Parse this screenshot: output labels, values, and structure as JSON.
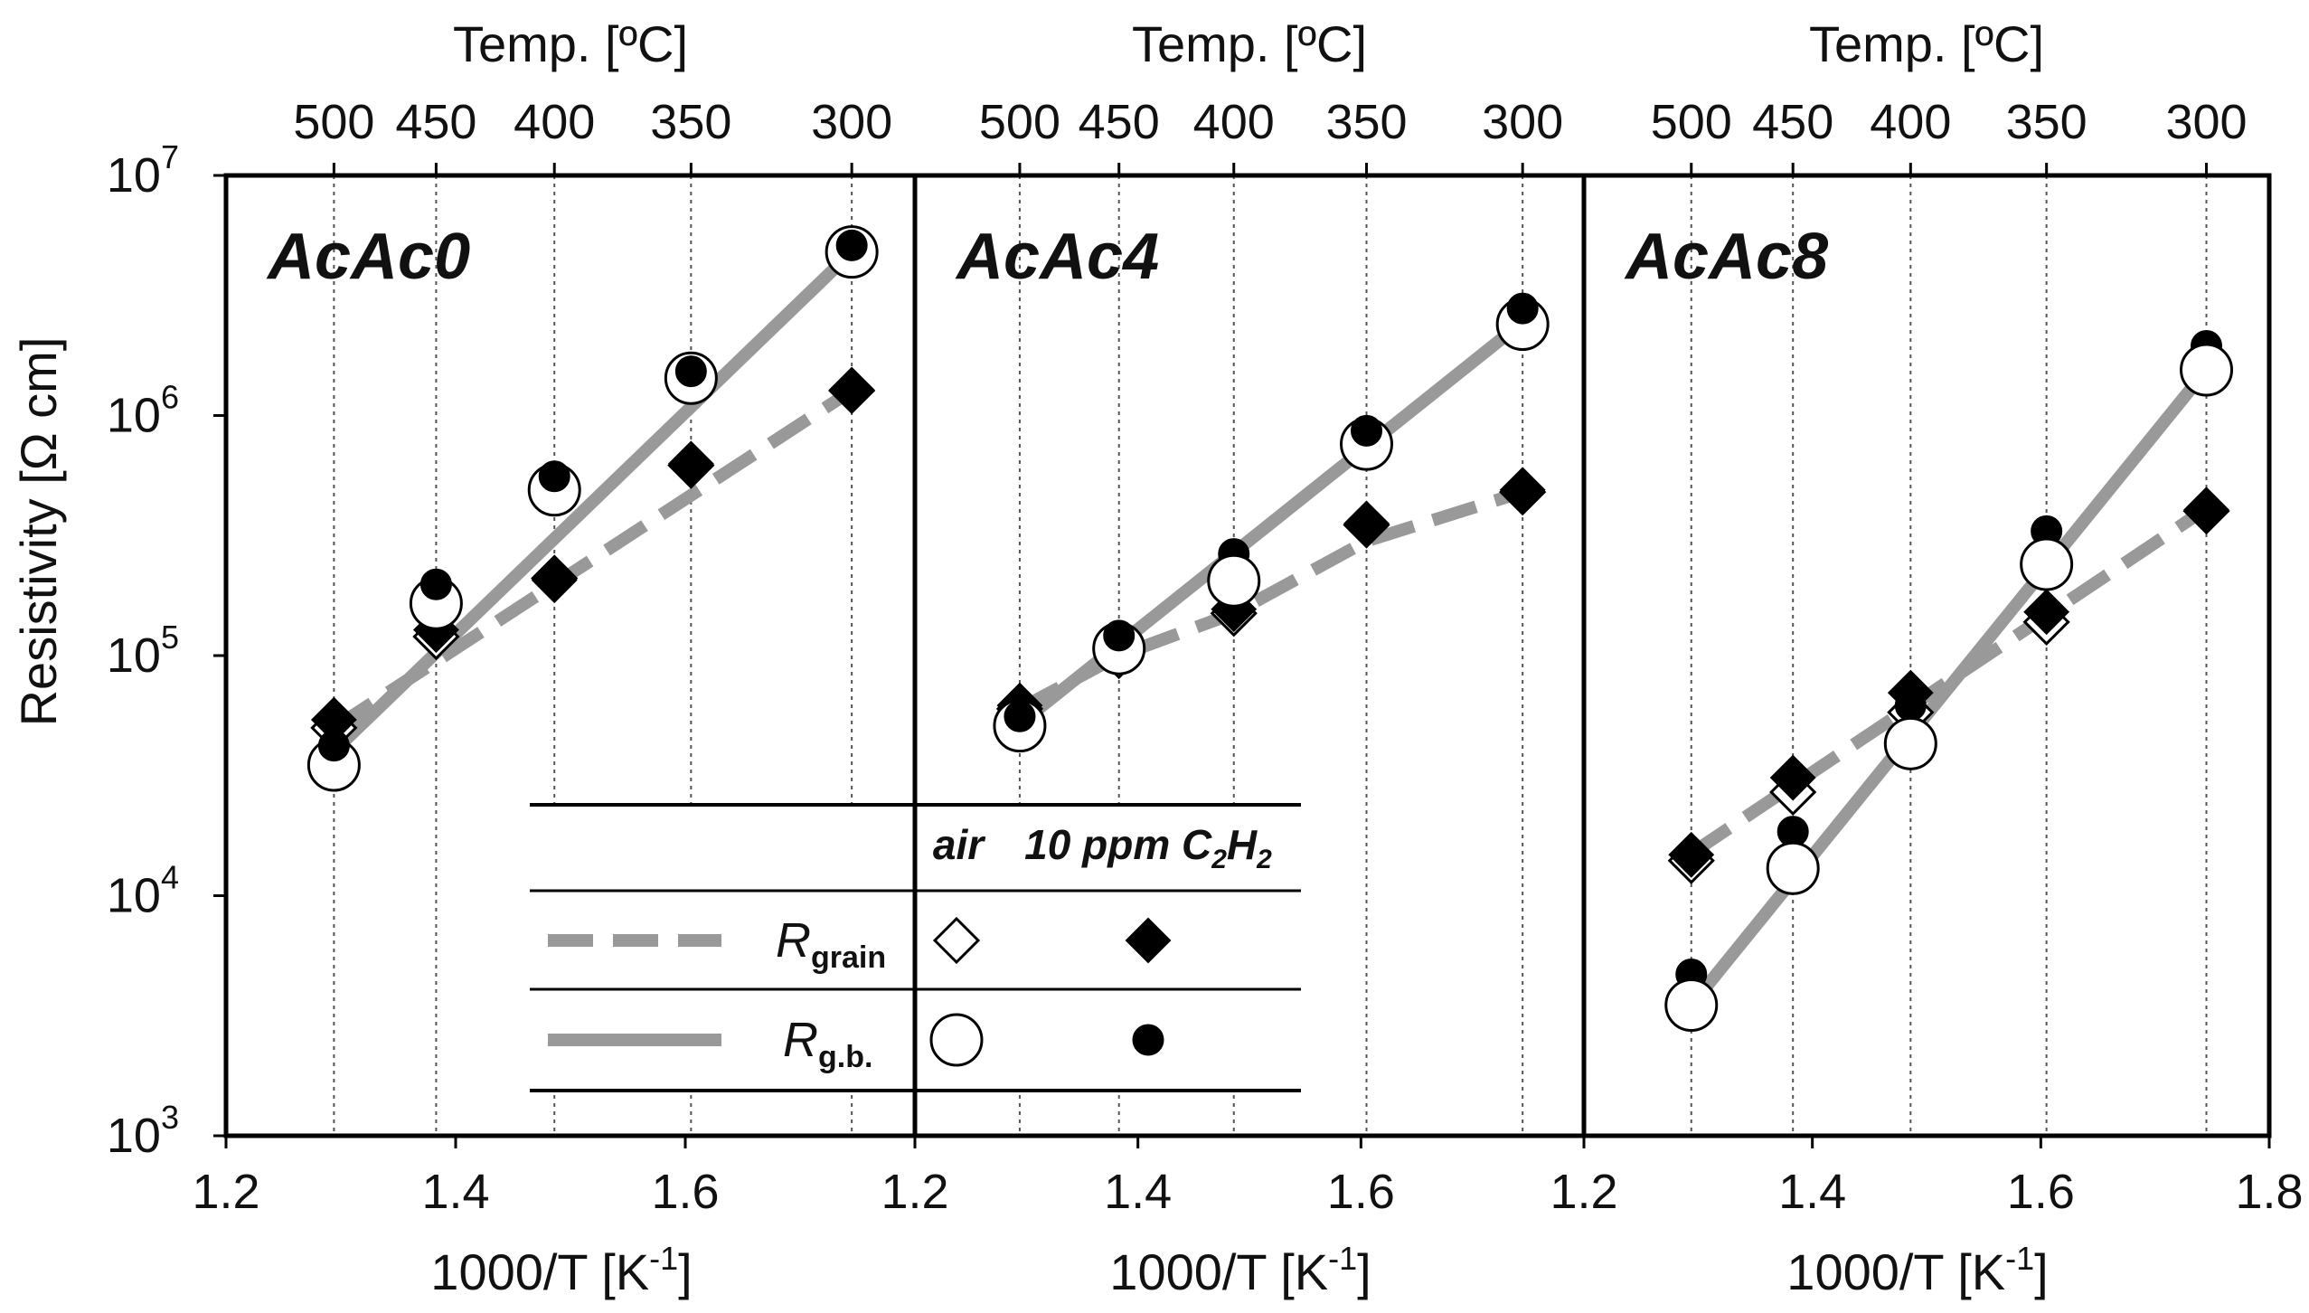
{
  "chart_data": {
    "type": "scatter",
    "yscale": "log",
    "ylabel_text": "Resistivity",
    "ylabel_unit": "[Ω cm]",
    "ylim": [
      1000,
      10000000
    ],
    "yticks": [
      {
        "value": 1000,
        "base": "10",
        "exp": "3"
      },
      {
        "value": 10000,
        "base": "10",
        "exp": "4"
      },
      {
        "value": 100000,
        "base": "10",
        "exp": "5"
      },
      {
        "value": 1000000,
        "base": "10",
        "exp": "6"
      },
      {
        "value": 10000000,
        "base": "10",
        "exp": "7"
      }
    ],
    "xlabel_main": "1000/T [K",
    "xlabel_exp": "-1",
    "xlabel_end": "]",
    "top_axis_label": "Temp. [ºC]",
    "panels": [
      {
        "title": "AcAc0",
        "xlim": [
          1.2,
          1.8
        ],
        "xtick_labels": [
          {
            "value": 1.2,
            "label": "1.2"
          },
          {
            "value": 1.4,
            "label": "1.4"
          },
          {
            "value": 1.6,
            "label": "1.6"
          }
        ],
        "temps": [
          {
            "label": "500",
            "x": 1.294
          },
          {
            "label": "450",
            "x": 1.383
          },
          {
            "label": "400",
            "x": 1.486
          },
          {
            "label": "350",
            "x": 1.605
          },
          {
            "label": "300",
            "x": 1.745
          }
        ],
        "series": [
          {
            "name": "R_grain air",
            "marker": "diamond-open",
            "x": [
              1.294,
              1.383,
              1.486,
              1.605,
              1.745
            ],
            "values": [
              50000,
              120000,
              210000,
              620000,
              1270000
            ]
          },
          {
            "name": "R_grain 10 ppm C2H2",
            "marker": "diamond-filled",
            "x": [
              1.294,
              1.383,
              1.486,
              1.605,
              1.745
            ],
            "values": [
              54000,
              128000,
              206000,
              630000,
              1280000
            ]
          },
          {
            "name": "R_g.b. air",
            "marker": "circle-open",
            "x": [
              1.294,
              1.383,
              1.486,
              1.605,
              1.745
            ],
            "values": [
              35000,
              165000,
              490000,
              1430000,
              4800000
            ]
          },
          {
            "name": "R_g.b. 10 ppm C2H2",
            "marker": "circle-filled",
            "x": [
              1.294,
              1.383,
              1.486,
              1.605,
              1.745
            ],
            "values": [
              40000,
              188000,
              530000,
              1450000,
              4850000
            ]
          }
        ],
        "fit_lines": [
          {
            "style": "dashed",
            "x": [
              1.294,
              1.745
            ],
            "values": [
              50000,
              1270000
            ]
          },
          {
            "style": "solid",
            "x": [
              1.294,
              1.745
            ],
            "values": [
              40000,
              4800000
            ]
          }
        ]
      },
      {
        "title": "AcAc4",
        "xlim": [
          1.2,
          1.8
        ],
        "xtick_labels": [
          {
            "value": 1.2,
            "label": "1.2"
          },
          {
            "value": 1.4,
            "label": "1.4"
          },
          {
            "value": 1.6,
            "label": "1.6"
          }
        ],
        "temps": [
          {
            "label": "500",
            "x": 1.294
          },
          {
            "label": "450",
            "x": 1.383
          },
          {
            "label": "400",
            "x": 1.486
          },
          {
            "label": "350",
            "x": 1.605
          },
          {
            "label": "300",
            "x": 1.745
          }
        ],
        "series": [
          {
            "name": "R_grain air",
            "marker": "diamond-open",
            "x": [
              1.294,
              1.383,
              1.486,
              1.605,
              1.745
            ],
            "values": [
              60000,
              100000,
              150000,
              350000,
              480000
            ]
          },
          {
            "name": "R_grain 10 ppm C2H2",
            "marker": "diamond-filled",
            "x": [
              1.294,
              1.383,
              1.486,
              1.605,
              1.745
            ],
            "values": [
              62000,
              104000,
              156000,
              355000,
              490000
            ]
          },
          {
            "name": "R_g.b. air",
            "marker": "circle-open",
            "x": [
              1.294,
              1.383,
              1.486,
              1.605,
              1.745
            ],
            "values": [
              51000,
              107000,
              205000,
              760000,
              2400000
            ]
          },
          {
            "name": "R_g.b. 10 ppm C2H2",
            "marker": "circle-filled",
            "x": [
              1.294,
              1.383,
              1.486,
              1.605,
              1.745
            ],
            "values": [
              53000,
              115000,
              265000,
              820000,
              2650000
            ]
          }
        ],
        "fit_lines": [
          {
            "style": "dashed",
            "x": [
              1.294,
              1.383,
              1.486,
              1.605,
              1.745
            ],
            "values": [
              60000,
              100000,
              150000,
              300000,
              480000
            ]
          },
          {
            "style": "solid",
            "x": [
              1.294,
              1.745
            ],
            "values": [
              52000,
              2450000
            ]
          }
        ]
      },
      {
        "title": "AcAc8",
        "xlim": [
          1.2,
          1.8
        ],
        "xtick_labels": [
          {
            "value": 1.2,
            "label": "1.2"
          },
          {
            "value": 1.4,
            "label": "1.4"
          },
          {
            "value": 1.6,
            "label": "1.6"
          },
          {
            "value": 1.8,
            "label": "1.8"
          }
        ],
        "temps": [
          {
            "label": "500",
            "x": 1.294
          },
          {
            "label": "450",
            "x": 1.383
          },
          {
            "label": "400",
            "x": 1.486
          },
          {
            "label": "350",
            "x": 1.605
          },
          {
            "label": "300",
            "x": 1.745
          }
        ],
        "series": [
          {
            "name": "R_grain air",
            "marker": "diamond-open",
            "x": [
              1.294,
              1.383,
              1.486,
              1.605,
              1.745
            ],
            "values": [
              14000,
              27000,
              58000,
              138000,
              400000
            ]
          },
          {
            "name": "R_grain 10 ppm C2H2",
            "marker": "diamond-filled",
            "x": [
              1.294,
              1.383,
              1.486,
              1.605,
              1.745
            ],
            "values": [
              14800,
              31000,
              70000,
              152000,
              405000
            ]
          },
          {
            "name": "R_g.b. air",
            "marker": "circle-open",
            "x": [
              1.294,
              1.383,
              1.486,
              1.605,
              1.745
            ],
            "values": [
              3500,
              13000,
              43000,
              240000,
              1550000
            ]
          },
          {
            "name": "R_g.b. 10 ppm C2H2",
            "marker": "circle-filled",
            "x": [
              1.294,
              1.383,
              1.486,
              1.605,
              1.745
            ],
            "values": [
              4700,
              18500,
              62000,
              330000,
              1950000
            ]
          }
        ],
        "fit_lines": [
          {
            "style": "dashed",
            "x": [
              1.294,
              1.745
            ],
            "values": [
              15000,
              410000
            ]
          },
          {
            "style": "solid",
            "x": [
              1.294,
              1.745
            ],
            "values": [
              3500,
              1550000
            ]
          }
        ]
      }
    ],
    "legend": {
      "col_air": "air",
      "col_gas_prefix": "10 ppm C",
      "col_gas_sub1": "2",
      "col_gas_mid": "H",
      "col_gas_sub2": "2",
      "rows": [
        {
          "symbol": "R",
          "subscript": "grain",
          "line": "dashed",
          "air_marker": "diamond-open",
          "gas_marker": "diamond-filled"
        },
        {
          "symbol": "R",
          "subscript": "g.b.",
          "line": "solid",
          "air_marker": "circle-open",
          "gas_marker": "circle-filled"
        }
      ]
    },
    "colors": {
      "fit_line": "#999999",
      "axis": "#000000",
      "marker_fill": "#000000",
      "marker_open_fill": "#ffffff",
      "grid": "#555555"
    }
  }
}
